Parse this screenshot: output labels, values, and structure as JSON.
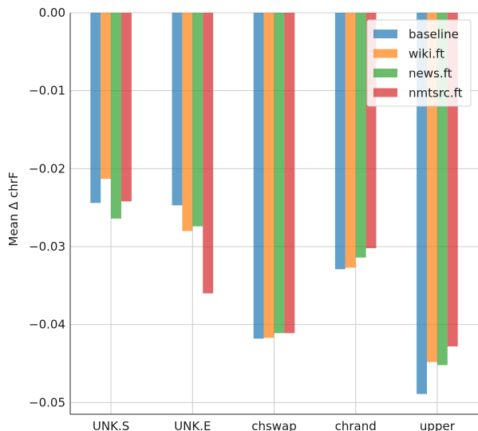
{
  "chart_data": {
    "type": "bar",
    "title": "",
    "xlabel": "",
    "ylabel": "Mean Δ chrF",
    "ylim": [
      -0.0515,
      0.0
    ],
    "yticks": [
      0.0,
      -0.01,
      -0.02,
      -0.03,
      -0.04,
      -0.05
    ],
    "ytick_labels": [
      "0.00",
      "−0.01",
      "−0.02",
      "−0.03",
      "−0.04",
      "−0.05"
    ],
    "grid": true,
    "legend_position": "top-right",
    "categories": [
      "UNK.S",
      "UNK.E",
      "chswap",
      "chrand",
      "upper"
    ],
    "series": [
      {
        "name": "baseline",
        "color": "#1f77b4",
        "values": [
          -0.0244,
          -0.0247,
          -0.0418,
          -0.0329,
          -0.0489
        ]
      },
      {
        "name": "wiki.ft",
        "color": "#ff7f0e",
        "values": [
          -0.0213,
          -0.028,
          -0.0417,
          -0.0327,
          -0.0448
        ]
      },
      {
        "name": "news.ft",
        "color": "#2ca02c",
        "values": [
          -0.0264,
          -0.0274,
          -0.0411,
          -0.0314,
          -0.0452
        ]
      },
      {
        "name": "nmtsrc.ft",
        "color": "#d62728",
        "values": [
          -0.0242,
          -0.036,
          -0.0411,
          -0.0302,
          -0.0428
        ]
      }
    ]
  }
}
